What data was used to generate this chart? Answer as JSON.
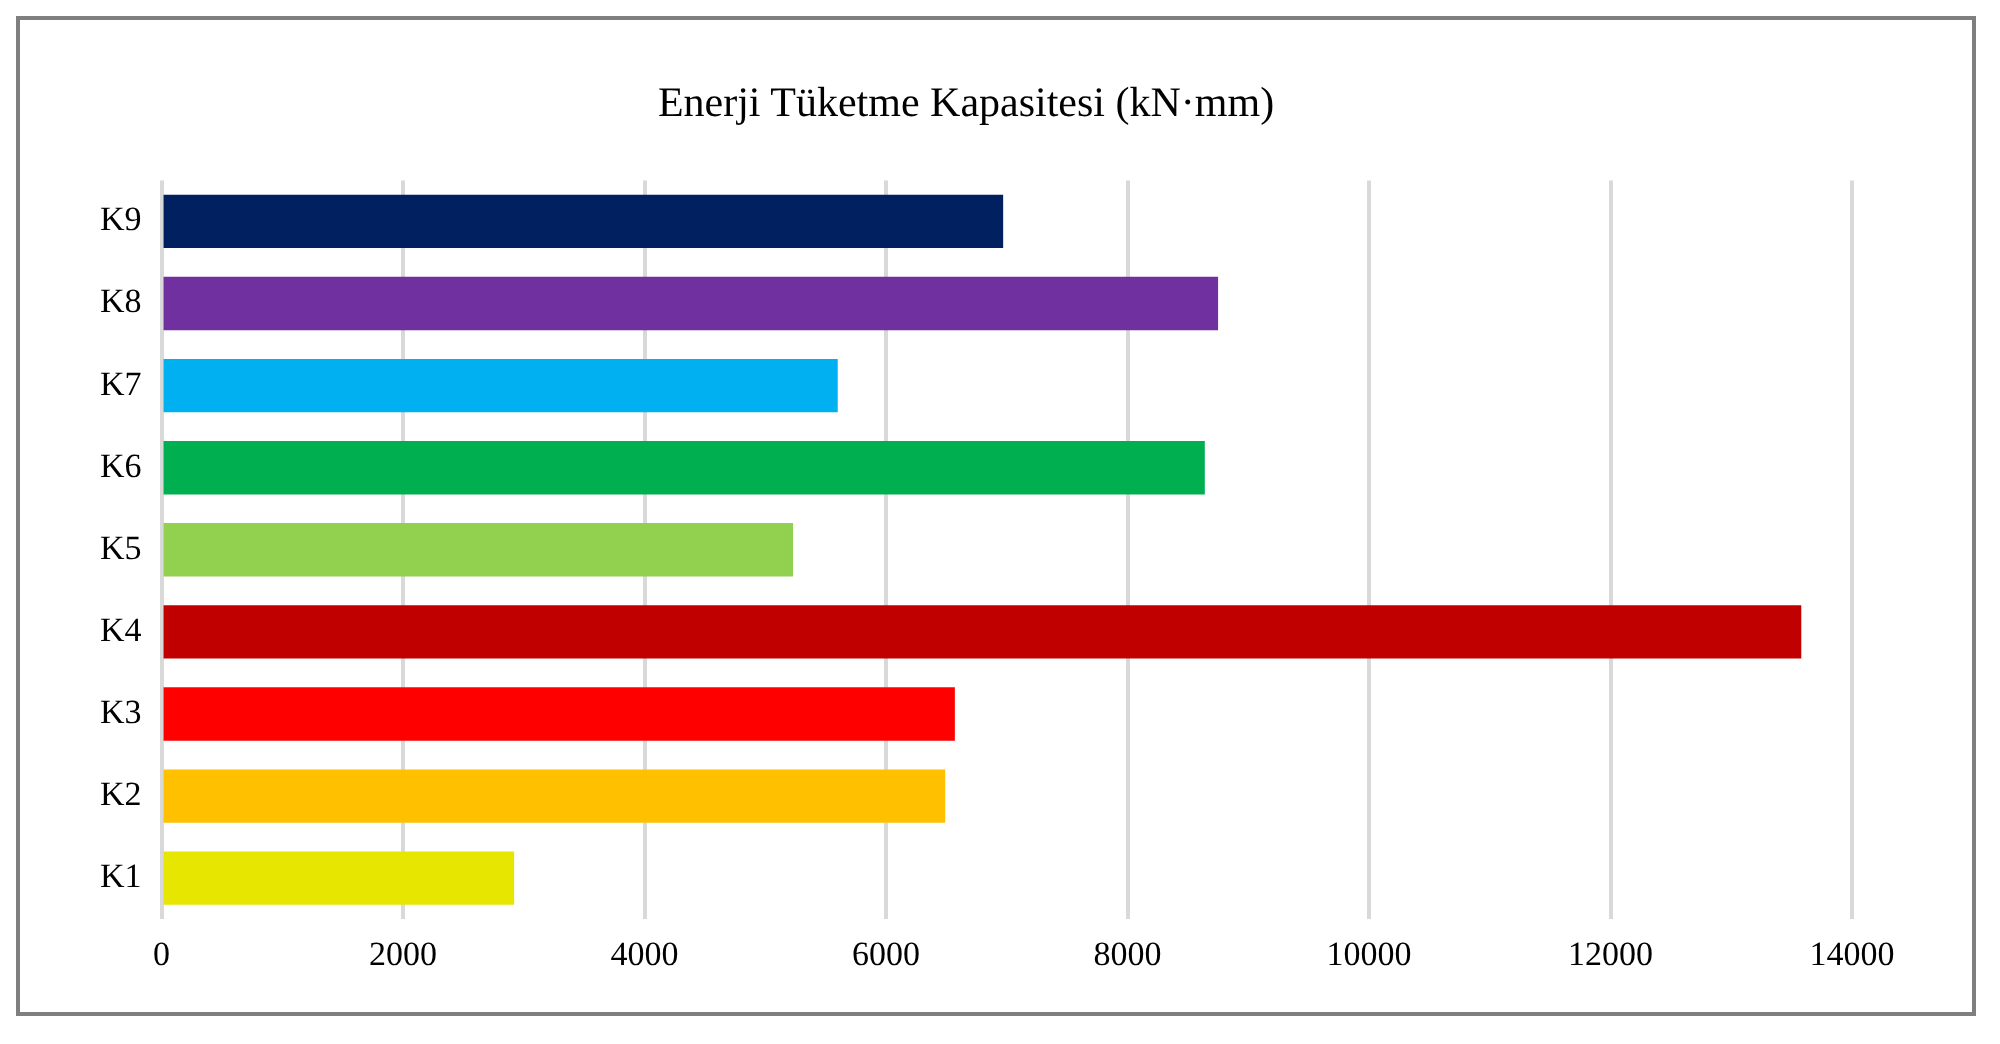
{
  "chart_data": {
    "type": "bar",
    "orientation": "horizontal",
    "title": "Enerji Tüketme Kapasitesi (kN·mm)",
    "categories": [
      "K9",
      "K8",
      "K7",
      "K6",
      "K5",
      "K4",
      "K3",
      "K2",
      "K1"
    ],
    "values": [
      6970,
      8750,
      5600,
      8640,
      5230,
      13580,
      6570,
      6490,
      2920
    ],
    "colors": [
      "#002060",
      "#7030a0",
      "#00b0f0",
      "#00b050",
      "#92d050",
      "#c00000",
      "#ff0000",
      "#ffc000",
      "#e6e600"
    ],
    "xlim": [
      0,
      14000
    ],
    "xticks": [
      0,
      2000,
      4000,
      6000,
      8000,
      10000,
      12000,
      14000
    ],
    "grid": "x",
    "legend": false
  }
}
